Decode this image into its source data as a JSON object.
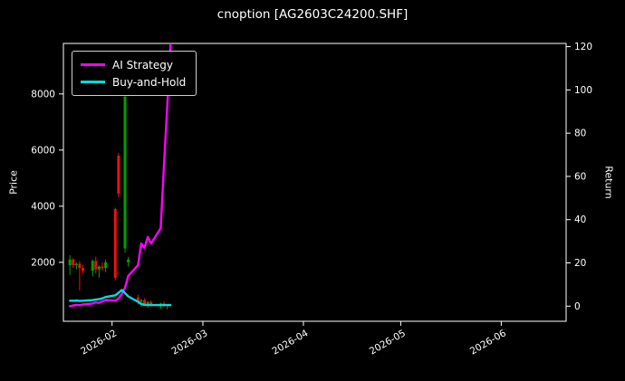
{
  "title": "cnoption [AG2603C24200.SHF]",
  "colors": {
    "background": "#000000",
    "text": "#ffffff",
    "spine": "#ffffff",
    "ai_strategy": "#ff00ff",
    "buy_hold": "#00dddd",
    "candle_up": "#00a000",
    "candle_down": "#ee1111"
  },
  "legend": {
    "items": [
      {
        "label": "AI Strategy",
        "color": "#ff00ff"
      },
      {
        "label": "Buy-and-Hold",
        "color": "#00dddd"
      }
    ]
  },
  "axes": {
    "left": {
      "label": "Price",
      "ticks": [
        2000,
        4000,
        6000,
        8000
      ],
      "range": [
        -100,
        9800
      ]
    },
    "right": {
      "label": "Return",
      "ticks": [
        0,
        20,
        40,
        60,
        80,
        100,
        120
      ],
      "range": [
        -7,
        121.5
      ]
    },
    "x": {
      "range": [
        "2026-01-17",
        "2026-06-21"
      ],
      "ticks": [
        {
          "date": "2026-02-01",
          "label": "2026-02"
        },
        {
          "date": "2026-03-01",
          "label": "2026-03"
        },
        {
          "date": "2026-04-01",
          "label": "2026-04"
        },
        {
          "date": "2026-05-01",
          "label": "2026-05"
        },
        {
          "date": "2026-06-01",
          "label": "2026-06"
        }
      ]
    }
  },
  "chart_data": {
    "type": "candlestick+line",
    "title": "cnoption [AG2603C24200.SHF]",
    "left_axis_label": "Price",
    "right_axis_label": "Return",
    "grid": false,
    "legend_position": "upper left",
    "candles": [
      {
        "date": "2026-01-19",
        "open": 1900,
        "high": 2250,
        "low": 1550,
        "close": 2100
      },
      {
        "date": "2026-01-20",
        "open": 2100,
        "high": 2150,
        "low": 1800,
        "close": 1900
      },
      {
        "date": "2026-01-21",
        "open": 1900,
        "high": 2000,
        "low": 1750,
        "close": 1950
      },
      {
        "date": "2026-01-22",
        "open": 1950,
        "high": 2050,
        "low": 1000,
        "close": 1800
      },
      {
        "date": "2026-01-23",
        "open": 1800,
        "high": 1900,
        "low": 1600,
        "close": 1700
      },
      {
        "date": "2026-01-26",
        "open": 1700,
        "high": 2100,
        "low": 1500,
        "close": 2050
      },
      {
        "date": "2026-01-27",
        "open": 2050,
        "high": 2200,
        "low": 1600,
        "close": 1750
      },
      {
        "date": "2026-01-28",
        "open": 1750,
        "high": 1900,
        "low": 1450,
        "close": 1850
      },
      {
        "date": "2026-01-29",
        "open": 1850,
        "high": 2000,
        "low": 1700,
        "close": 1800
      },
      {
        "date": "2026-01-30",
        "open": 1800,
        "high": 2100,
        "low": 1650,
        "close": 2000
      },
      {
        "date": "2026-02-02",
        "open": 3900,
        "high": 3950,
        "low": 1350,
        "close": 1450
      },
      {
        "date": "2026-02-03",
        "open": 5800,
        "high": 5900,
        "low": 4300,
        "close": 4450
      },
      {
        "date": "2026-02-05",
        "open": 2500,
        "high": 8150,
        "low": 2350,
        "close": 7900
      },
      {
        "date": "2026-02-06",
        "open": 2000,
        "high": 2200,
        "low": 1850,
        "close": 2100
      },
      {
        "date": "2026-02-09",
        "open": 750,
        "high": 850,
        "low": 500,
        "close": 600
      },
      {
        "date": "2026-02-10",
        "open": 600,
        "high": 700,
        "low": 420,
        "close": 650
      },
      {
        "date": "2026-02-11",
        "open": 650,
        "high": 720,
        "low": 480,
        "close": 520
      },
      {
        "date": "2026-02-12",
        "open": 520,
        "high": 620,
        "low": 380,
        "close": 580
      },
      {
        "date": "2026-02-13",
        "open": 580,
        "high": 640,
        "low": 430,
        "close": 470
      },
      {
        "date": "2026-02-16",
        "open": 470,
        "high": 560,
        "low": 350,
        "close": 530
      },
      {
        "date": "2026-02-17",
        "open": 530,
        "high": 600,
        "low": 400,
        "close": 450
      },
      {
        "date": "2026-02-18",
        "open": 450,
        "high": 520,
        "low": 330,
        "close": 490
      }
    ],
    "series": [
      {
        "name": "AI Strategy",
        "color": "#ff00ff",
        "axis": "return",
        "points": [
          [
            "2026-01-19",
            0
          ],
          [
            "2026-01-20",
            0.3
          ],
          [
            "2026-01-21",
            0.6
          ],
          [
            "2026-01-22",
            0.4
          ],
          [
            "2026-01-23",
            0.8
          ],
          [
            "2026-01-26",
            1.2
          ],
          [
            "2026-01-27",
            1.8
          ],
          [
            "2026-01-28",
            1.5
          ],
          [
            "2026-01-29",
            2.2
          ],
          [
            "2026-01-30",
            2.8
          ],
          [
            "2026-02-02",
            2.6
          ],
          [
            "2026-02-03",
            3.5
          ],
          [
            "2026-02-04",
            5.6
          ],
          [
            "2026-02-05",
            8.5
          ],
          [
            "2026-02-06",
            14
          ],
          [
            "2026-02-09",
            19
          ],
          [
            "2026-02-10",
            29
          ],
          [
            "2026-02-11",
            27
          ],
          [
            "2026-02-12",
            32
          ],
          [
            "2026-02-13",
            29
          ],
          [
            "2026-02-16",
            36
          ],
          [
            "2026-02-17",
            65
          ],
          [
            "2026-02-18",
            92
          ],
          [
            "2026-02-19",
            121
          ]
        ]
      },
      {
        "name": "Buy-and-Hold",
        "color": "#00dddd",
        "axis": "return",
        "points": [
          [
            "2026-01-19",
            2.5
          ],
          [
            "2026-01-20",
            2.5
          ],
          [
            "2026-01-21",
            2.6
          ],
          [
            "2026-01-22",
            2.4
          ],
          [
            "2026-01-23",
            2.5
          ],
          [
            "2026-01-26",
            2.8
          ],
          [
            "2026-01-27",
            3.0
          ],
          [
            "2026-01-28",
            3.2
          ],
          [
            "2026-01-29",
            3.6
          ],
          [
            "2026-01-30",
            4.2
          ],
          [
            "2026-02-02",
            5.0
          ],
          [
            "2026-02-03",
            6.2
          ],
          [
            "2026-02-04",
            7.5
          ],
          [
            "2026-02-05",
            6.0
          ],
          [
            "2026-02-06",
            4.5
          ],
          [
            "2026-02-09",
            2.0
          ],
          [
            "2026-02-10",
            1.0
          ],
          [
            "2026-02-11",
            0.6
          ],
          [
            "2026-02-12",
            0.5
          ],
          [
            "2026-02-13",
            0.5
          ],
          [
            "2026-02-16",
            0.5
          ],
          [
            "2026-02-17",
            0.5
          ],
          [
            "2026-02-18",
            0.5
          ],
          [
            "2026-02-19",
            0.5
          ]
        ]
      }
    ]
  }
}
